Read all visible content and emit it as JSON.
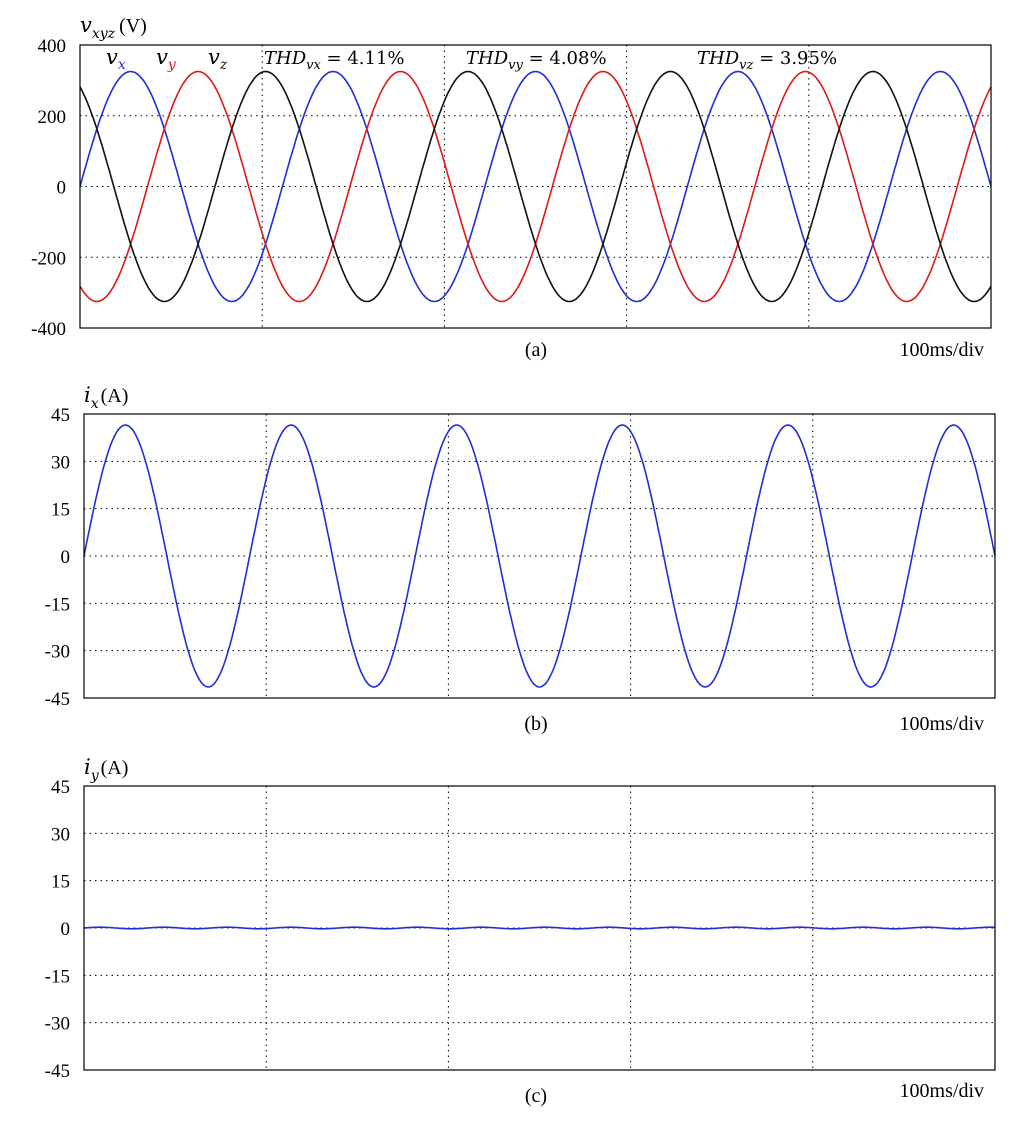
{
  "chart_data": [
    {
      "type": "line",
      "panel_label": "(a)",
      "ylabel": {
        "symbol": "v",
        "subscript": "xyz",
        "unit": "(V)"
      },
      "ylim": [
        -400,
        400
      ],
      "yticks": [
        "400",
        "200",
        "0",
        "-200",
        "-400"
      ],
      "time_scale": "100ms/div",
      "x_divisions": 5,
      "grid": true,
      "cycles_shown": 4.5,
      "series": [
        {
          "name": "v_x",
          "symbol": "v",
          "subscript": "x",
          "color": "#1f2fd6",
          "amplitude": 325,
          "phase_deg": 0
        },
        {
          "name": "v_y",
          "symbol": "v",
          "subscript": "y",
          "color": "#e01818",
          "amplitude": 325,
          "phase_deg": -120
        },
        {
          "name": "v_z",
          "symbol": "v",
          "subscript": "z",
          "color": "#111111",
          "amplitude": 325,
          "phase_deg": 120
        }
      ],
      "annotations": [
        {
          "prefix": "THD",
          "subscript": "vx",
          "value": " = 4.11%"
        },
        {
          "prefix": "THD",
          "subscript": "vy",
          "value": " = 4.08%"
        },
        {
          "prefix": "THD",
          "subscript": "vz",
          "value": " = 3.95%"
        }
      ]
    },
    {
      "type": "line",
      "panel_label": "(b)",
      "ylabel": {
        "symbol": "i",
        "subscript": "x",
        "unit": "(A)"
      },
      "ylim": [
        -45,
        45
      ],
      "yticks": [
        "45",
        "30",
        "15",
        "0",
        "-15",
        "-30",
        "-45"
      ],
      "time_scale": "100ms/div",
      "x_divisions": 5,
      "grid": true,
      "cycles_shown": 5.5,
      "series": [
        {
          "name": "i_x",
          "color": "#1f2fd6",
          "amplitude": 41.5,
          "phase_deg": 0
        }
      ]
    },
    {
      "type": "line",
      "panel_label": "(c)",
      "ylabel": {
        "symbol": "i",
        "subscript": "y",
        "unit": "(A)"
      },
      "ylim": [
        -45,
        45
      ],
      "yticks": [
        "45",
        "30",
        "15",
        "0",
        "-15",
        "-30",
        "-45"
      ],
      "time_scale": "100ms/div",
      "x_divisions": 5,
      "grid": true,
      "cycles_shown": 5.5,
      "series": [
        {
          "name": "i_y",
          "color": "#1f2fd6",
          "amplitude": 0,
          "phase_deg": 0
        }
      ]
    }
  ]
}
